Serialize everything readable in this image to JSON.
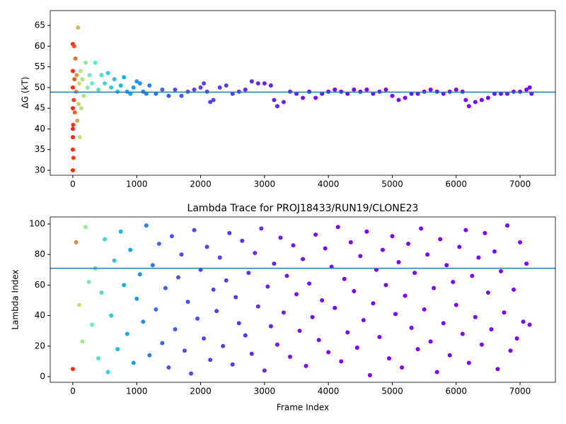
{
  "chart_data": [
    {
      "type": "scatter",
      "ylabel": "ΔG (kT)",
      "xlim": [
        -354,
        7553
      ],
      "ylim": [
        28.8,
        68.6
      ],
      "xticks": [
        0,
        1000,
        2000,
        3000,
        4000,
        5000,
        6000,
        7000
      ],
      "yticks": [
        30,
        35,
        40,
        45,
        50,
        55,
        60,
        65
      ],
      "hline": 48.9,
      "hline_color": "#1f77b4",
      "color_stops": [
        [
          0,
          "#ff2a10"
        ],
        [
          100,
          "#c8e070"
        ],
        [
          300,
          "#60f0c0"
        ],
        [
          800,
          "#10b0f0"
        ],
        [
          1500,
          "#4058f0"
        ],
        [
          4100,
          "#8000ff"
        ]
      ],
      "x": [
        0,
        0,
        0,
        0,
        0,
        0,
        0,
        0,
        5,
        10,
        15,
        20,
        25,
        30,
        40,
        50,
        60,
        70,
        80,
        90,
        100,
        110,
        120,
        130,
        150,
        170,
        200,
        230,
        260,
        300,
        350,
        400,
        450,
        500,
        550,
        600,
        650,
        700,
        750,
        800,
        850,
        900,
        950,
        1000,
        1050,
        1100,
        1150,
        1200,
        1300,
        1400,
        1500,
        1600,
        1700,
        1800,
        1900,
        2000,
        2050,
        2100,
        2150,
        2200,
        2300,
        2400,
        2500,
        2600,
        2700,
        2800,
        2900,
        3000,
        3100,
        3150,
        3200,
        3300,
        3400,
        3500,
        3600,
        3700,
        3800,
        3900,
        4000,
        4100,
        4200,
        4300,
        4400,
        4500,
        4600,
        4700,
        4800,
        4900,
        5000,
        5100,
        5200,
        5300,
        5400,
        5500,
        5600,
        5700,
        5800,
        5900,
        6000,
        6100,
        6150,
        6200,
        6300,
        6400,
        6500,
        6600,
        6700,
        6800,
        6900,
        7000,
        7100,
        7150,
        7180
      ],
      "y": [
        30,
        35,
        40,
        45,
        50,
        54,
        60.5,
        38,
        41,
        33,
        47,
        60,
        52,
        44,
        57,
        49,
        53,
        42,
        64.5,
        46,
        51,
        38,
        54,
        45,
        52,
        48,
        56,
        50,
        53,
        51,
        56,
        49.5,
        53,
        51,
        53.5,
        50,
        52,
        49,
        50.5,
        52.5,
        49,
        48.5,
        50,
        51.5,
        51,
        49,
        48.5,
        50.5,
        48.5,
        49.5,
        48,
        49.5,
        48,
        49,
        49.5,
        50,
        51,
        49,
        46.5,
        47,
        50,
        50.5,
        48.5,
        49,
        49.5,
        51.5,
        51,
        51,
        50.5,
        47,
        45.5,
        46.5,
        49,
        48.5,
        47.5,
        49,
        47.5,
        48.5,
        49,
        49.5,
        49,
        48.5,
        49.5,
        49,
        49.5,
        48.5,
        49,
        49.5,
        48,
        47,
        47.5,
        48.5,
        48.5,
        49,
        49.5,
        49,
        48.5,
        49,
        49.5,
        49,
        47,
        45.5,
        46.5,
        47,
        47.5,
        48.5,
        48.5,
        48.5,
        49,
        49,
        49.5,
        50,
        48.5
      ]
    },
    {
      "type": "scatter",
      "title": "Lambda Trace for PROJ18433/RUN19/CLONE23",
      "xlabel": "Frame Index",
      "ylabel": "Lambda Index",
      "xlim": [
        -354,
        7553
      ],
      "ylim": [
        -3.7,
        104.6
      ],
      "xticks": [
        0,
        1000,
        2000,
        3000,
        4000,
        5000,
        6000,
        7000
      ],
      "yticks": [
        0,
        20,
        40,
        60,
        80,
        100
      ],
      "hline": 71,
      "hline_color": "#1f77b4",
      "color_stops": [
        [
          0,
          "#ff2a10"
        ],
        [
          100,
          "#c8e070"
        ],
        [
          300,
          "#60f0c0"
        ],
        [
          800,
          "#10b0f0"
        ],
        [
          1500,
          "#4058f0"
        ],
        [
          4100,
          "#8000ff"
        ]
      ],
      "x": [
        0,
        50,
        100,
        150,
        200,
        250,
        300,
        350,
        400,
        450,
        500,
        550,
        600,
        650,
        700,
        750,
        800,
        850,
        900,
        950,
        1000,
        1050,
        1100,
        1150,
        1200,
        1250,
        1300,
        1350,
        1400,
        1450,
        1500,
        1550,
        1600,
        1650,
        1700,
        1750,
        1800,
        1850,
        1900,
        1950,
        2000,
        2050,
        2100,
        2150,
        2200,
        2250,
        2300,
        2350,
        2400,
        2450,
        2500,
        2550,
        2600,
        2650,
        2700,
        2750,
        2800,
        2850,
        2900,
        2950,
        3000,
        3050,
        3100,
        3150,
        3200,
        3250,
        3300,
        3350,
        3400,
        3450,
        3500,
        3550,
        3600,
        3650,
        3700,
        3750,
        3800,
        3850,
        3900,
        3950,
        4000,
        4050,
        4100,
        4150,
        4200,
        4250,
        4300,
        4350,
        4400,
        4450,
        4500,
        4550,
        4600,
        4650,
        4700,
        4750,
        4800,
        4850,
        4900,
        4950,
        5000,
        5050,
        5100,
        5150,
        5200,
        5250,
        5300,
        5350,
        5400,
        5450,
        5500,
        5550,
        5600,
        5650,
        5700,
        5750,
        5800,
        5850,
        5900,
        5950,
        6000,
        6050,
        6100,
        6150,
        6200,
        6250,
        6300,
        6350,
        6400,
        6450,
        6500,
        6550,
        6600,
        6650,
        6700,
        6750,
        6800,
        6850,
        6900,
        6950,
        7000,
        7050,
        7100,
        7150
      ],
      "y": [
        5,
        88,
        47,
        23,
        98,
        62,
        34,
        71,
        12,
        55,
        90,
        3,
        40,
        76,
        18,
        95,
        60,
        28,
        83,
        9,
        51,
        67,
        36,
        99,
        14,
        73,
        44,
        87,
        22,
        58,
        6,
        92,
        31,
        65,
        80,
        17,
        49,
        2,
        96,
        38,
        70,
        25,
        85,
        11,
        57,
        43,
        78,
        20,
        63,
        94,
        8,
        52,
        35,
        89,
        27,
        68,
        15,
        81,
        46,
        97,
        4,
        59,
        33,
        74,
        21,
        91,
        42,
        66,
        13,
        86,
        54,
        30,
        77,
        7,
        61,
        39,
        93,
        24,
        50,
        84,
        16,
        72,
        45,
        98,
        10,
        64,
        29,
        88,
        56,
        19,
        79,
        37,
        95,
        1,
        48,
        70,
        26,
        83,
        60,
        12,
        92,
        41,
        75,
        6,
        53,
        87,
        32,
        68,
        18,
        97,
        44,
        80,
        23,
        58,
        3,
        90,
        35,
        73,
        14,
        62,
        47,
        85,
        28,
        96,
        9,
        66,
        39,
        78,
        21,
        94,
        55,
        31,
        82,
        5,
        69,
        42,
        99,
        17,
        57,
        25,
        88,
        36,
        74,
        34
      ]
    }
  ]
}
